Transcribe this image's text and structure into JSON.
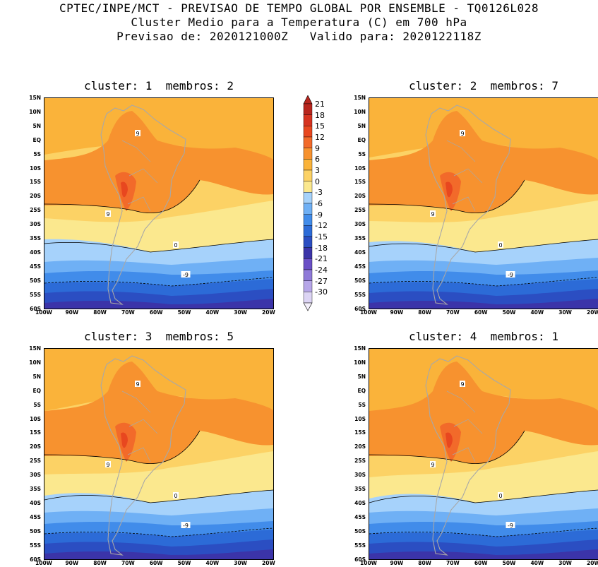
{
  "header": {
    "line1": "CPTEC/INPE/MCT - PREVISAO DE TEMPO GLOBAL POR ENSEMBLE - TQ0126L028",
    "line2": "Cluster Medio para a Temperatura (C) em 700 hPa",
    "line3": "Previsao de: 2020121000Z   Valido para: 2020122118Z"
  },
  "panels": [
    {
      "title": "cluster: 1  membros: 2"
    },
    {
      "title": "cluster: 2  membros: 7"
    },
    {
      "title": "cluster: 3  membros: 5"
    },
    {
      "title": "cluster: 4  membros: 1"
    }
  ],
  "lat_labels": [
    "15N",
    "10N",
    "5N",
    "EQ",
    "5S",
    "10S",
    "15S",
    "20S",
    "25S",
    "30S",
    "35S",
    "40S",
    "45S",
    "50S",
    "55S",
    "60S"
  ],
  "lon_labels": [
    "100W",
    "90W",
    "80W",
    "70W",
    "60W",
    "50W",
    "40W",
    "30W",
    "20W"
  ],
  "colorbar": {
    "labels": [
      "21",
      "18",
      "15",
      "12",
      "9",
      "6",
      "3",
      "0",
      "-3",
      "-6",
      "-9",
      "-12",
      "-15",
      "-18",
      "-21",
      "-24",
      "-27",
      "-30"
    ],
    "colors": [
      "#b8261e",
      "#d63320",
      "#e8471f",
      "#f26a2a",
      "#f7922f",
      "#fab33a",
      "#fcd265",
      "#fbe88e",
      "#a6d2fb",
      "#6fb0f5",
      "#418cea",
      "#2c6bd7",
      "#2b4ec2",
      "#3b34a9",
      "#6a4fc6",
      "#8f7ad9",
      "#b6a6e8",
      "#dcd4f4"
    ]
  }
}
